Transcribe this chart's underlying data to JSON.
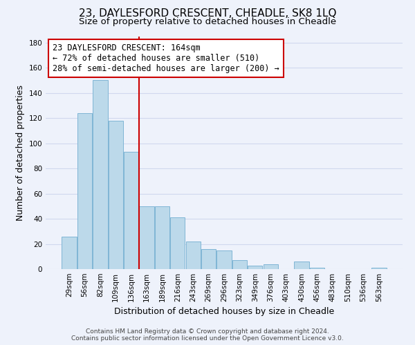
{
  "title": "23, DAYLESFORD CRESCENT, CHEADLE, SK8 1LQ",
  "subtitle": "Size of property relative to detached houses in Cheadle",
  "xlabel": "Distribution of detached houses by size in Cheadle",
  "ylabel": "Number of detached properties",
  "bar_labels": [
    "29sqm",
    "56sqm",
    "82sqm",
    "109sqm",
    "136sqm",
    "163sqm",
    "189sqm",
    "216sqm",
    "243sqm",
    "269sqm",
    "296sqm",
    "323sqm",
    "349sqm",
    "376sqm",
    "403sqm",
    "430sqm",
    "456sqm",
    "483sqm",
    "510sqm",
    "536sqm",
    "563sqm"
  ],
  "bar_values": [
    26,
    124,
    150,
    118,
    93,
    50,
    50,
    41,
    22,
    16,
    15,
    7,
    3,
    4,
    0,
    6,
    1,
    0,
    0,
    0,
    1
  ],
  "bar_color": "#bcd9ea",
  "bar_edge_color": "#7fb5d5",
  "vline_index": 5,
  "vline_color": "#cc0000",
  "annotation_line1": "23 DAYLESFORD CRESCENT: 164sqm",
  "annotation_line2": "← 72% of detached houses are smaller (510)",
  "annotation_line3": "28% of semi-detached houses are larger (200) →",
  "annotation_box_color": "white",
  "annotation_box_edge_color": "#cc0000",
  "ylim": [
    0,
    185
  ],
  "yticks": [
    0,
    20,
    40,
    60,
    80,
    100,
    120,
    140,
    160,
    180
  ],
  "footer_line1": "Contains HM Land Registry data © Crown copyright and database right 2024.",
  "footer_line2": "Contains public sector information licensed under the Open Government Licence v3.0.",
  "background_color": "#eef2fb",
  "grid_color": "#d0d8ee",
  "title_fontsize": 11,
  "subtitle_fontsize": 9.5,
  "axis_label_fontsize": 9,
  "tick_fontsize": 7.5,
  "annotation_fontsize": 8.5,
  "footer_fontsize": 6.5
}
